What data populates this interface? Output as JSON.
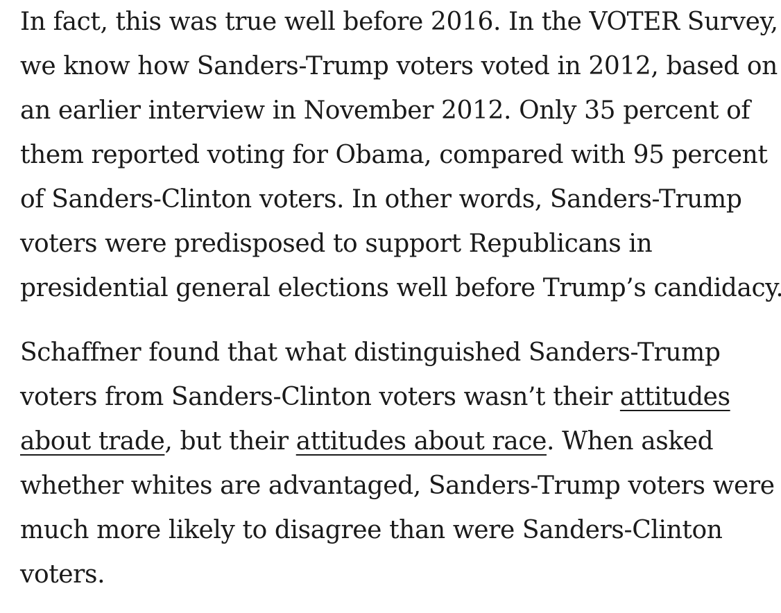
{
  "article": {
    "paragraphs": [
      {
        "lines": [
          "In fact, this was true well before 2016. In the VOTER Survey,",
          "we know how Sanders-Trump voters voted in 2012, based on",
          "an earlier interview in November 2012. Only 35 percent of",
          "them reported voting for Obama, compared with 95 percent",
          "of Sanders-Clinton voters. In other words, Sanders-Trump",
          "voters were predisposed to support Republicans in",
          "presidential general elections well before Trump’s candidacy."
        ]
      },
      {
        "line1": "Schaffner found that what distinguished Sanders-Trump",
        "line2_text": "voters from Sanders-Clinton voters wasn’t their ",
        "link_trade_part1": "attitudes",
        "link_trade_part2": "about trade",
        "line3_mid": ", but their ",
        "link_race": "attitudes about race",
        "line3_end": ". When asked",
        "line4": "whether whites are advantaged, Sanders-Trump voters were",
        "line5": "much more likely to disagree than were Sanders-Clinton",
        "line6": "voters."
      }
    ]
  }
}
